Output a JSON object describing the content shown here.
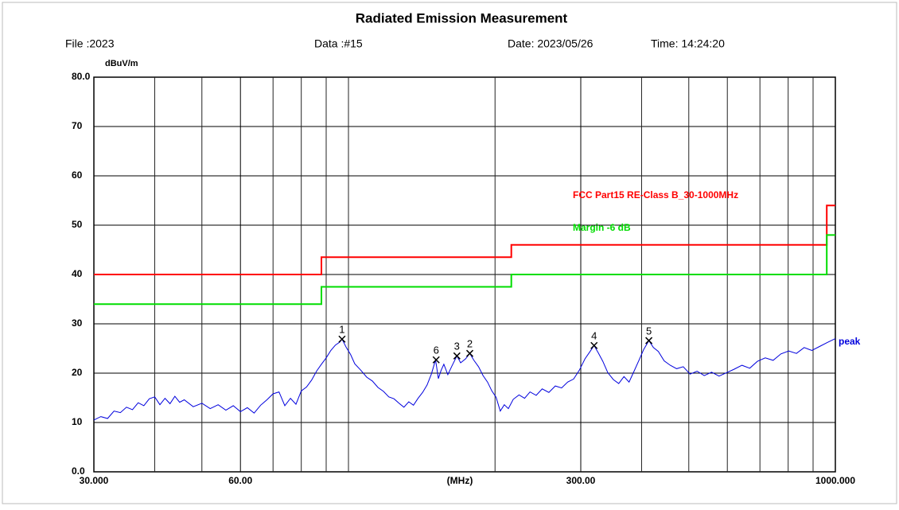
{
  "chart_data": {
    "type": "line",
    "title": "Radiated Emission Measurement",
    "header": {
      "file": "File :2023",
      "data": "Data :#15",
      "date": "Date: 2023/05/26",
      "time": "Time: 14:24:20"
    },
    "ylabel": "dBuV/m",
    "xlabel": "(MHz)",
    "xscale": "log",
    "grid": true,
    "xlim": [
      30,
      1000
    ],
    "ylim": [
      0,
      80
    ],
    "yticks": [
      {
        "value": 0,
        "label": "0.0"
      },
      10,
      20,
      30,
      40,
      50,
      60,
      70,
      {
        "value": 80,
        "label": "80.0"
      }
    ],
    "xticks": [
      {
        "value": 30,
        "label": "30.000"
      },
      {
        "value": 60,
        "label": "60.00"
      },
      {
        "value": 300,
        "label": "300.00"
      },
      {
        "value": 1000,
        "label": "1000.000"
      }
    ],
    "xgrid": [
      40,
      50,
      70,
      80,
      90,
      100,
      200,
      400,
      500,
      600,
      700,
      800,
      900
    ],
    "series": [
      {
        "name": "FCC Part15 RE-Class B_30-1000MHz",
        "color": "#ff0000",
        "x": [
          30,
          88,
          88,
          216,
          216,
          960,
          960,
          1000
        ],
        "values": [
          40,
          40,
          43.5,
          43.5,
          46,
          46,
          54,
          54
        ]
      },
      {
        "name": "Margin -6 dB",
        "color": "#00dd00",
        "x": [
          30,
          88,
          88,
          216,
          216,
          960,
          960,
          1000
        ],
        "values": [
          34,
          34,
          37.5,
          37.5,
          40,
          40,
          48,
          48
        ]
      },
      {
        "name": "peak",
        "color": "#0000dd",
        "x": [
          30,
          31,
          32,
          33,
          34,
          35,
          36,
          37,
          38,
          39,
          40,
          41,
          42,
          43,
          44,
          45,
          46,
          48,
          50,
          52,
          54,
          56,
          58,
          60,
          62,
          64,
          66,
          68,
          70,
          72,
          74,
          76,
          78,
          80,
          82,
          84,
          86,
          88,
          90,
          92,
          94,
          96,
          97,
          99,
          101,
          103,
          106,
          109,
          112,
          115,
          118,
          121,
          124,
          127,
          130,
          133,
          136,
          139,
          142,
          145,
          148,
          151,
          153,
          155,
          157,
          160,
          163,
          167,
          170,
          174,
          177.5,
          181,
          185,
          189,
          193,
          197,
          201,
          205,
          209,
          213,
          218,
          224,
          230,
          236,
          243,
          250,
          258,
          266,
          274,
          282,
          290,
          298,
          306,
          313,
          319.5,
          326,
          333,
          341,
          350,
          359,
          368,
          377,
          386,
          395,
          404,
          414,
          423,
          433,
          445,
          458,
          472,
          487,
          503,
          520,
          538,
          557,
          577,
          598,
          620,
          643,
          667,
          692,
          718,
          745,
          773,
          802,
          832,
          863,
          895,
          928,
          962,
          1000
        ],
        "values": [
          10.5,
          11.2,
          10.8,
          12.3,
          12.0,
          13.1,
          12.6,
          14.0,
          13.4,
          14.8,
          15.2,
          13.6,
          14.9,
          13.8,
          15.3,
          14.1,
          14.6,
          13.2,
          13.9,
          12.8,
          13.6,
          12.5,
          13.4,
          12.2,
          13.0,
          11.9,
          13.5,
          14.6,
          15.8,
          16.2,
          13.4,
          14.9,
          13.7,
          16.4,
          17.2,
          18.6,
          20.4,
          21.8,
          23.1,
          24.6,
          25.7,
          26.3,
          26.9,
          25.2,
          23.8,
          21.9,
          20.6,
          19.2,
          18.4,
          17.1,
          16.3,
          15.2,
          14.8,
          13.9,
          13.1,
          14.2,
          13.5,
          14.9,
          16.1,
          17.6,
          19.8,
          22.7,
          18.9,
          20.6,
          21.8,
          19.7,
          21.4,
          23.5,
          22.1,
          22.9,
          24.0,
          22.6,
          21.3,
          19.5,
          18.2,
          16.4,
          15.1,
          12.3,
          13.6,
          12.8,
          14.7,
          15.6,
          14.9,
          16.2,
          15.5,
          16.8,
          16.1,
          17.4,
          17.0,
          18.2,
          18.8,
          20.6,
          22.9,
          24.3,
          25.6,
          24.1,
          22.4,
          20.1,
          18.7,
          17.9,
          19.3,
          18.2,
          20.4,
          22.6,
          24.8,
          26.6,
          25.2,
          24.4,
          22.5,
          21.6,
          20.9,
          21.3,
          19.8,
          20.4,
          19.5,
          20.2,
          19.4,
          20.1,
          20.8,
          21.6,
          21.0,
          22.4,
          23.1,
          22.6,
          23.9,
          24.5,
          24.0,
          25.2,
          24.6,
          25.4,
          26.2,
          27.0
        ]
      }
    ],
    "markers": {
      "labels": [
        "1",
        "2",
        "3",
        "4",
        "5",
        "6"
      ],
      "x": [
        97.0,
        177.5,
        167.0,
        319.5,
        414.0,
        151.4
      ],
      "values": [
        26.9,
        24.0,
        23.5,
        25.6,
        26.6,
        22.7
      ]
    }
  }
}
